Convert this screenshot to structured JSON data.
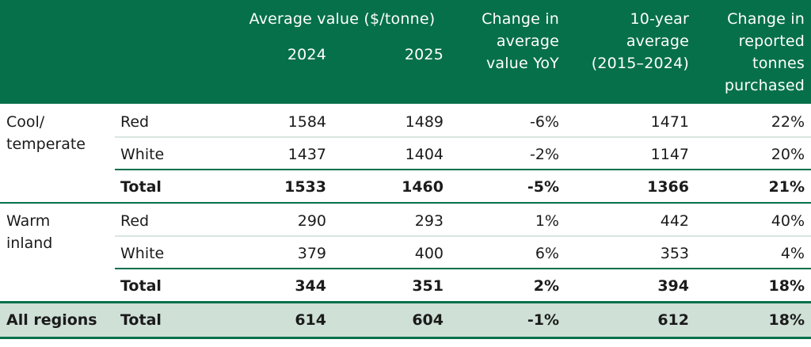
{
  "header": {
    "avg_value": "Average value ($/tonne)",
    "year_2024": "2024",
    "year_2025": "2025",
    "change_yoy": [
      "Change in",
      "average",
      "value YoY"
    ],
    "ten_year": [
      "10-year",
      "average",
      "(2015–2024)"
    ],
    "change_tonnes": [
      "Change in",
      "reported",
      "tonnes",
      "purchased"
    ]
  },
  "regions": [
    {
      "name_lines": [
        "Cool/",
        "temperate"
      ],
      "rows": [
        {
          "type": "Red",
          "v2024": "1584",
          "v2025": "1489",
          "change": "-6%",
          "avg10": "1471",
          "tonnes": "22%"
        },
        {
          "type": "White",
          "v2024": "1437",
          "v2025": "1404",
          "change": "-2%",
          "avg10": "1147",
          "tonnes": "20%"
        },
        {
          "type": "Total",
          "v2024": "1533",
          "v2025": "1460",
          "change": "-5%",
          "avg10": "1366",
          "tonnes": "21%"
        }
      ]
    },
    {
      "name_lines": [
        "Warm",
        "inland"
      ],
      "rows": [
        {
          "type": "Red",
          "v2024": "290",
          "v2025": "293",
          "change": "1%",
          "avg10": "442",
          "tonnes": "40%"
        },
        {
          "type": "White",
          "v2024": "379",
          "v2025": "400",
          "change": "6%",
          "avg10": "353",
          "tonnes": "4%"
        },
        {
          "type": "Total",
          "v2024": "344",
          "v2025": "351",
          "change": "2%",
          "avg10": "394",
          "tonnes": "18%"
        }
      ]
    }
  ],
  "all_regions": {
    "name": "All regions",
    "type": "Total",
    "v2024": "614",
    "v2025": "604",
    "change": "-1%",
    "avg10": "612",
    "tonnes": "18%"
  },
  "colors": {
    "header_bg": "#06704b",
    "all_regions_bg": "#cfe0d6",
    "divider_light": "#d9e6df"
  }
}
